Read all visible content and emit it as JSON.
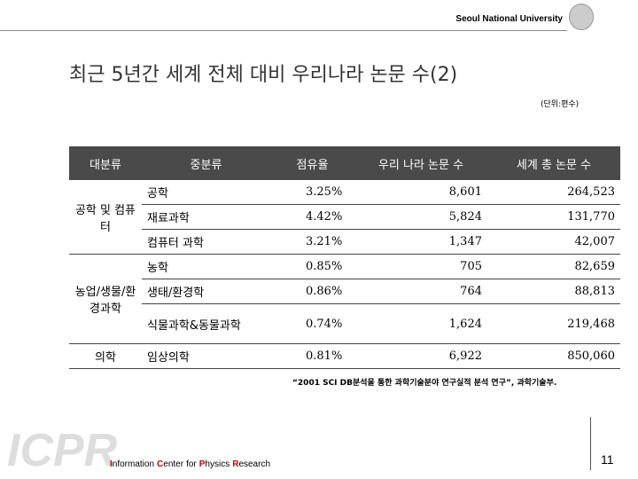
{
  "header": {
    "university": "Seoul National University"
  },
  "title": "최근 5년간 세계 전체 대비 우리나라 논문 수(2)",
  "unit": "(단위:편수)",
  "table": {
    "header": [
      "대분류",
      "중분류",
      "점유율",
      "우리 나라 논문 수",
      "세계 총 논문 수"
    ],
    "groups": [
      {
        "label": "공학 및 컴퓨터",
        "rows": [
          [
            "공학",
            "3.25%",
            "8,601",
            "264,523"
          ],
          [
            "재료과학",
            "4.42%",
            "5,824",
            "131,770"
          ],
          [
            "컴퓨터 과학",
            "3.21%",
            "1,347",
            "42,007"
          ]
        ]
      },
      {
        "label": "농업/생물/환경과학",
        "rows": [
          [
            "농학",
            "0.85%",
            "705",
            "82,659"
          ],
          [
            "생태/환경학",
            "0.86%",
            "764",
            "88,813"
          ],
          [
            "식물과학&동물과학",
            "0.74%",
            "1,624",
            "219,468"
          ]
        ]
      },
      {
        "label": "의학",
        "rows": [
          [
            "임상의학",
            "0.81%",
            "6,922",
            "850,060"
          ]
        ]
      }
    ]
  },
  "source": "“2001 SCI DB분석을 통한 과학기술분야 연구실적 분석 연구”, 과학기술부.",
  "footer": {
    "logo": "ICPR",
    "org_words": [
      "Information",
      "Center",
      "for",
      "Physics",
      "Research"
    ],
    "page": "11"
  }
}
